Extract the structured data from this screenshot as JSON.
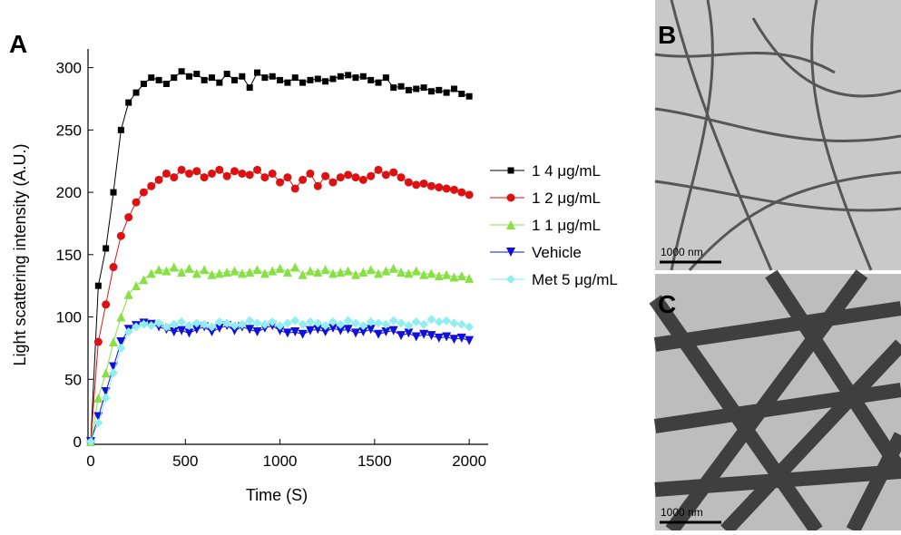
{
  "chart_data": {
    "type": "line",
    "x_label": "Time (S)",
    "y_label": "Light scattering intensity (A.U.)",
    "xlim": [
      0,
      2100
    ],
    "ylim": [
      0,
      315
    ],
    "xticks": [
      0,
      500,
      1000,
      1500,
      2000
    ],
    "yticks": [
      0,
      50,
      100,
      150,
      200,
      250,
      300
    ],
    "x": [
      0,
      40,
      80,
      120,
      160,
      200,
      240,
      280,
      320,
      360,
      400,
      440,
      480,
      520,
      560,
      600,
      640,
      680,
      720,
      760,
      800,
      840,
      880,
      920,
      960,
      1000,
      1040,
      1080,
      1120,
      1160,
      1200,
      1240,
      1280,
      1320,
      1360,
      1400,
      1440,
      1480,
      1520,
      1560,
      1600,
      1640,
      1680,
      1720,
      1760,
      1800,
      1840,
      1880,
      1920,
      1960,
      2000
    ],
    "series": [
      {
        "name": "1 4 μg/mL",
        "color": "#000000",
        "marker": "square",
        "values": [
          0,
          125,
          155,
          200,
          250,
          272,
          280,
          287,
          292,
          290,
          287,
          292,
          297,
          293,
          295,
          290,
          292,
          288,
          295,
          290,
          293,
          284,
          296,
          292,
          293,
          290,
          288,
          292,
          288,
          290,
          291,
          289,
          291,
          293,
          294,
          292,
          293,
          290,
          288,
          292,
          284,
          285,
          282,
          283,
          284,
          281,
          282,
          280,
          283,
          279,
          277
        ]
      },
      {
        "name": "1 2 μg/mL",
        "color": "#dd1111",
        "marker": "circle",
        "values": [
          0,
          80,
          110,
          140,
          165,
          180,
          192,
          200,
          205,
          210,
          215,
          212,
          218,
          215,
          217,
          212,
          215,
          218,
          213,
          217,
          215,
          214,
          218,
          212,
          215,
          208,
          212,
          203,
          210,
          215,
          205,
          213,
          208,
          212,
          214,
          212,
          210,
          213,
          218,
          214,
          216,
          212,
          208,
          206,
          207,
          205,
          204,
          203,
          202,
          200,
          198
        ]
      },
      {
        "name": "1 1 μg/mL",
        "color": "#88e044",
        "marker": "triangle-up",
        "values": [
          0,
          35,
          55,
          80,
          100,
          118,
          125,
          130,
          135,
          138,
          137,
          140,
          136,
          139,
          135,
          138,
          134,
          135,
          136,
          137,
          135,
          136,
          138,
          135,
          137,
          139,
          136,
          140,
          134,
          137,
          136,
          138,
          135,
          136,
          137,
          134,
          136,
          138,
          135,
          137,
          139,
          136,
          135,
          137,
          134,
          135,
          133,
          134,
          132,
          133,
          131
        ]
      },
      {
        "name": "Vehicle",
        "color": "#1010dd",
        "marker": "triangle-down",
        "values": [
          0,
          20,
          40,
          60,
          80,
          90,
          93,
          95,
          94,
          92,
          90,
          88,
          89,
          87,
          90,
          92,
          88,
          91,
          93,
          89,
          92,
          90,
          88,
          91,
          93,
          89,
          87,
          88,
          86,
          89,
          90,
          88,
          91,
          89,
          90,
          87,
          88,
          90,
          86,
          88,
          89,
          85,
          87,
          84,
          86,
          85,
          83,
          84,
          82,
          83,
          81
        ]
      },
      {
        "name": "Met 5 μg/mL",
        "color": "#90eef0",
        "marker": "diamond",
        "values": [
          0,
          15,
          35,
          55,
          75,
          88,
          92,
          94,
          93,
          95,
          92,
          94,
          96,
          93,
          95,
          94,
          92,
          96,
          95,
          93,
          94,
          97,
          95,
          94,
          96,
          93,
          95,
          97,
          94,
          96,
          95,
          93,
          96,
          94,
          97,
          95,
          93,
          96,
          95,
          94,
          97,
          95,
          93,
          96,
          94,
          98,
          96,
          97,
          95,
          94,
          92
        ]
      }
    ]
  },
  "figure": {
    "panels": [
      "A",
      "B",
      "C"
    ],
    "scale_bars": [
      "1000 nm",
      "1000 nm"
    ]
  }
}
